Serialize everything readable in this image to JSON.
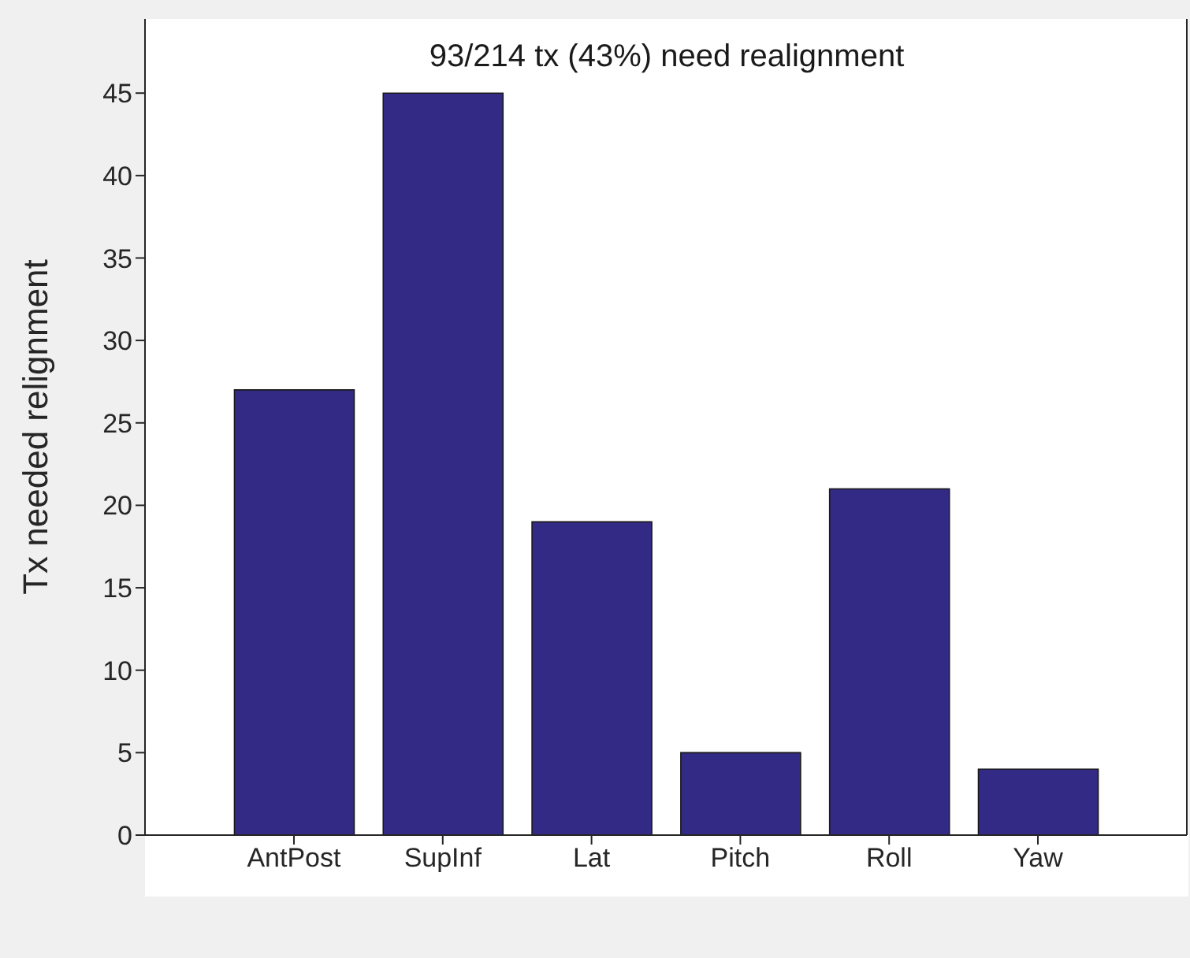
{
  "chart_data": {
    "type": "bar",
    "ylabel": "Tx needed relignment",
    "annotations": [
      "93/214 tx (43%) need realignment"
    ],
    "categories": [
      "AntPost",
      "SupInf",
      "Lat",
      "Pitch",
      "Roll",
      "Yaw"
    ],
    "values": [
      27,
      45,
      19,
      5,
      21,
      4
    ],
    "color": "#332a85",
    "ylim": [
      0,
      49.5
    ],
    "yticks": [
      0,
      5,
      10,
      15,
      20,
      25,
      30,
      35,
      40,
      45
    ],
    "grid": false,
    "legend": false
  }
}
